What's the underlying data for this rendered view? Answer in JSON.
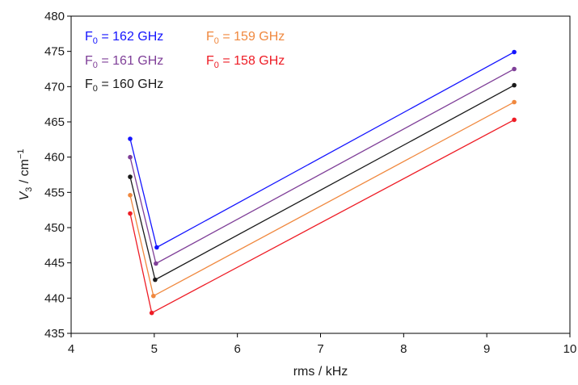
{
  "chart_data": {
    "type": "line",
    "title": "",
    "xlabel": "rms / kHz",
    "ylabel_main": "V",
    "ylabel_sub": "3",
    "ylabel_rest": " / cm",
    "ylabel_sup": "−1",
    "xlim": [
      4,
      10
    ],
    "ylim": [
      435,
      480
    ],
    "xticks": [
      4,
      5,
      6,
      7,
      8,
      9,
      10
    ],
    "yticks": [
      435,
      440,
      445,
      450,
      455,
      460,
      465,
      470,
      475,
      480
    ],
    "grid": false,
    "legend_position": "top-left",
    "series": [
      {
        "name": "F0 = 162 GHz",
        "label_main": "F",
        "label_sub": "0",
        "label_rest": " = 162 GHz",
        "color": "#1414ff",
        "points": [
          [
            4.71,
            462.6
          ],
          [
            5.03,
            447.2
          ],
          [
            9.33,
            474.9
          ]
        ]
      },
      {
        "name": "F0 = 161 GHz",
        "label_main": "F",
        "label_sub": "0",
        "label_rest": " = 161 GHz",
        "color": "#7f3f98",
        "points": [
          [
            4.71,
            460.0
          ],
          [
            5.02,
            444.9
          ],
          [
            9.33,
            472.5
          ]
        ]
      },
      {
        "name": "F0 = 160 GHz",
        "label_main": "F",
        "label_sub": "0",
        "label_rest": " = 160 GHz",
        "color": "#1a1a1a",
        "points": [
          [
            4.71,
            457.2
          ],
          [
            5.01,
            442.6
          ],
          [
            9.33,
            470.2
          ]
        ]
      },
      {
        "name": "F0 = 159 GHz",
        "label_main": "F",
        "label_sub": "0",
        "label_rest": " = 159 GHz",
        "color": "#f0883e",
        "points": [
          [
            4.71,
            454.6
          ],
          [
            4.99,
            440.3
          ],
          [
            9.33,
            467.8
          ]
        ]
      },
      {
        "name": "F0 = 158 GHz",
        "label_main": "F",
        "label_sub": "0",
        "label_rest": " = 158 GHz",
        "color": "#ee1c25",
        "points": [
          [
            4.71,
            452.0
          ],
          [
            4.97,
            437.9
          ],
          [
            9.33,
            465.3
          ]
        ]
      }
    ]
  }
}
